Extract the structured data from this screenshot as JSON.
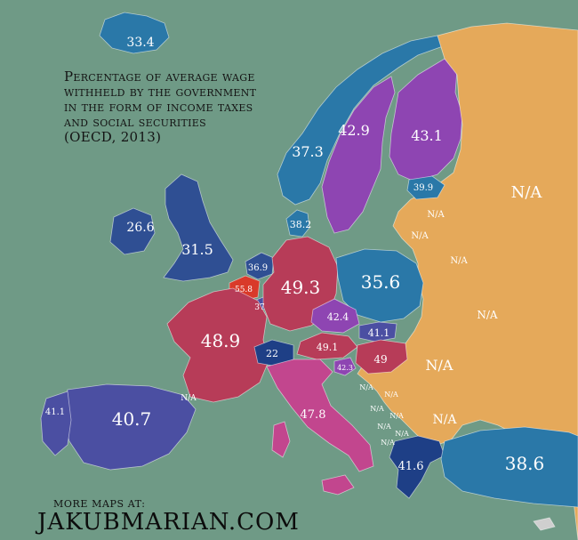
{
  "title": "Percentage of average wage\nwithheld by the government\nin the form of income taxes\nand social securities\n(OECD, 2013)",
  "footer": {
    "small": "MORE MAPS AT:",
    "big": "JAKUBMARIAN.COM"
  },
  "colors": {
    "sea": "#6f9a86",
    "na": "#e5a95a",
    "blue": "#2a78a8",
    "darkblue": "#2f4f93",
    "indigo": "#4b4fa2",
    "purple": "#8e45b2",
    "crimson": "#b73c58",
    "magenta": "#c2468e",
    "red": "#d93a2a",
    "navy": "#1e3f86",
    "grey": "#cfcfcf"
  },
  "labels": [
    {
      "text": "33.4"
    },
    {
      "text": "42.9"
    },
    {
      "text": "43.1"
    },
    {
      "text": "37.3"
    },
    {
      "text": "39.9"
    },
    {
      "text": "N/A"
    },
    {
      "text": "38.2"
    },
    {
      "text": "26.6"
    },
    {
      "text": "31.5"
    },
    {
      "text": "36.9"
    },
    {
      "text": "55.8"
    },
    {
      "text": "37"
    },
    {
      "text": "49.3"
    },
    {
      "text": "35.6"
    },
    {
      "text": "42.4"
    },
    {
      "text": "41.1"
    },
    {
      "text": "48.9"
    },
    {
      "text": "22"
    },
    {
      "text": "49.1"
    },
    {
      "text": "49"
    },
    {
      "text": "42.3"
    },
    {
      "text": "41.1"
    },
    {
      "text": "40.7"
    },
    {
      "text": "47.8"
    },
    {
      "text": "41.6"
    },
    {
      "text": "38.6"
    },
    {
      "text": "N/A"
    },
    {
      "text": "N/A"
    },
    {
      "text": "N/A"
    },
    {
      "text": "N/A"
    },
    {
      "text": "N/A"
    },
    {
      "text": "N/A"
    },
    {
      "text": "N/A"
    },
    {
      "text": "N/A"
    },
    {
      "text": "N/A"
    },
    {
      "text": "N/A"
    },
    {
      "text": "N/A"
    },
    {
      "text": "N/A"
    },
    {
      "text": "N/A"
    },
    {
      "text": "N/A"
    }
  ]
}
